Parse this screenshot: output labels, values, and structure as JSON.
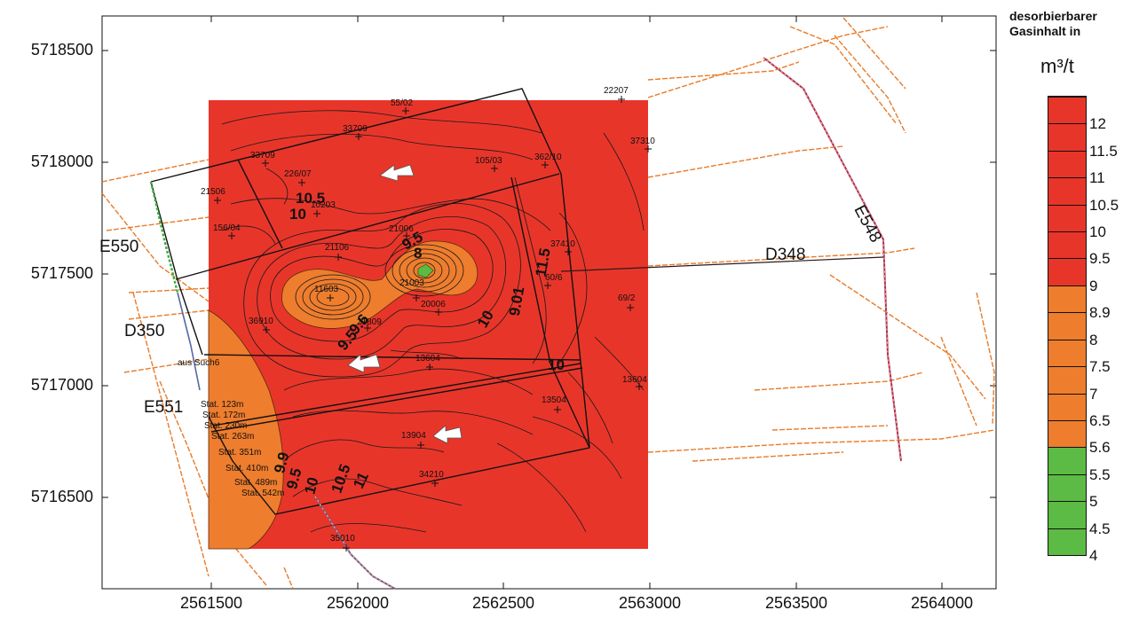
{
  "map": {
    "y_ticks": [
      "5718500",
      "5718000",
      "5717500",
      "5717000",
      "5716500"
    ],
    "x_ticks": [
      "2561500",
      "2562000",
      "2562500",
      "2563000",
      "2563500",
      "2564000"
    ],
    "legend": {
      "title_line1": "desorbierbarer",
      "title_line2": "Gasinhalt in",
      "unit": "m³/t",
      "classes": [
        {
          "value": "12",
          "color": "#e8352a"
        },
        {
          "value": "11.5",
          "color": "#e8352a"
        },
        {
          "value": "11",
          "color": "#e8352a"
        },
        {
          "value": "10.5",
          "color": "#e8352a"
        },
        {
          "value": "10",
          "color": "#e8352a"
        },
        {
          "value": "9.5",
          "color": "#e8352a"
        },
        {
          "value": "9",
          "color": "#e8352a"
        },
        {
          "value": "8.9",
          "color": "#ee7d2d"
        },
        {
          "value": "8",
          "color": "#ee7d2d"
        },
        {
          "value": "7.5",
          "color": "#ee7d2d"
        },
        {
          "value": "7",
          "color": "#ee7d2d"
        },
        {
          "value": "6.5",
          "color": "#ee7d2d"
        },
        {
          "value": "5.6",
          "color": "#ee7d2d"
        },
        {
          "value": "5.5",
          "color": "#5cbb44"
        },
        {
          "value": "5",
          "color": "#5cbb44"
        },
        {
          "value": "4.5",
          "color": "#5cbb44"
        },
        {
          "value": "4",
          "color": "#5cbb44"
        }
      ]
    },
    "drift_labels": {
      "e550": "E550",
      "d350": "D350",
      "e551": "E551",
      "d348": "D348",
      "e548": "E548"
    },
    "borehole_labels": {
      "b55_02": "55/02",
      "b22207": "22207",
      "b33709a": "33709",
      "b33709b": "33709",
      "b37310": "37310",
      "b226_07": "226/07",
      "b105_03": "105/03",
      "b362_10": "362/10",
      "b21506": "21506",
      "b10203": "10203",
      "b156_04": "156/04",
      "b21106": "21106",
      "b21006": "21006",
      "b37410": "37410",
      "b11603": "11603",
      "b21003": "21003",
      "b20006": "20006",
      "b60_6": "60/6",
      "b69_2": "69/2",
      "b36910": "36910",
      "b21809": "21809",
      "b13604a": "13604",
      "b13604b": "13604",
      "b13504": "13504",
      "b13904": "13904",
      "b34210": "34210",
      "b35010": "35010",
      "aus_such": "aus Such6",
      "stat123": "Stat. 123m",
      "stat172": "Stat. 172m",
      "stat230": "Stat. 230m",
      "stat263": "Stat. 263m",
      "stat351": "Stat. 351m",
      "stat410": "Stat. 410m",
      "stat489": "Stat. 489m",
      "stat542": "Stat. 542m"
    },
    "contour_labels": {
      "c10_5": "10.5",
      "c10a": "10",
      "c9_5": "9.5",
      "c8": "8",
      "c11_5": "11.5",
      "c9_01": "9.01",
      "c10b": "10",
      "c10c": "10",
      "c9_5b": "9.5",
      "c9_6": "9.6",
      "c9_9": "9.9",
      "c9_5c": "9.5",
      "c10d": "10",
      "c10_5b": "10.5",
      "c11": "11"
    }
  }
}
